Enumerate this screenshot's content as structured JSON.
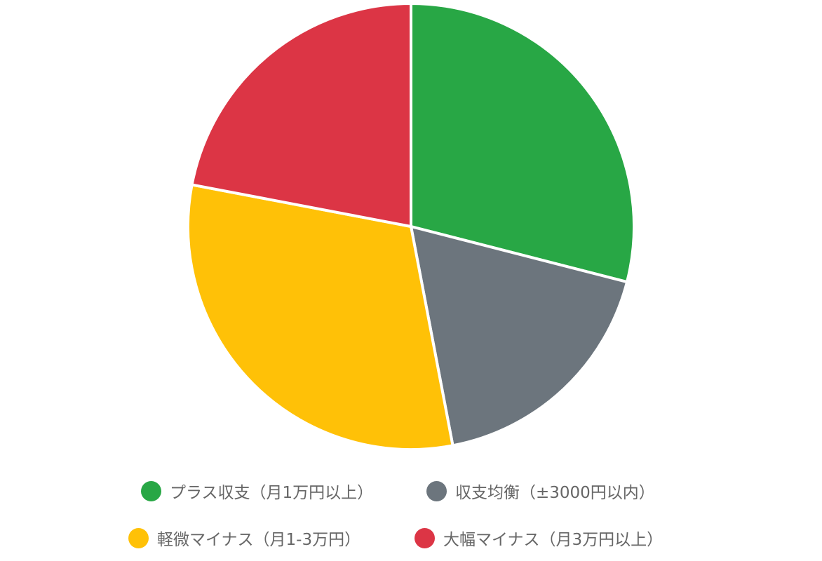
{
  "chart_data": {
    "type": "pie",
    "title": "",
    "start_angle": "top",
    "direction": "clockwise",
    "unit": "%",
    "categories": [
      "プラス収支（月1万円以上）",
      "収支均衡（±3000円以内）",
      "軽微マイナス（月1-3万円）",
      "大幅マイナス（月3万円以上）"
    ],
    "values": [
      29,
      18,
      31,
      22
    ],
    "colors": [
      "#28a745",
      "#6c757d",
      "#ffc107",
      "#dc3545"
    ],
    "legend_position": "bottom"
  }
}
